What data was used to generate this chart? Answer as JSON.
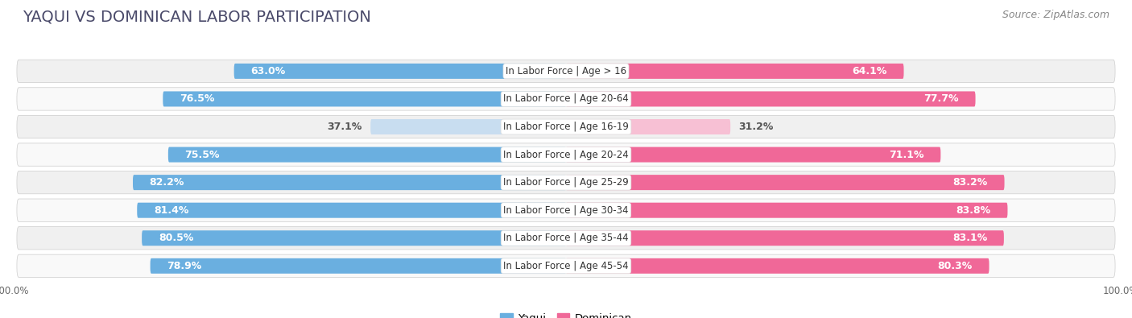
{
  "title": "YAQUI VS DOMINICAN LABOR PARTICIPATION",
  "source": "Source: ZipAtlas.com",
  "categories": [
    "In Labor Force | Age > 16",
    "In Labor Force | Age 20-64",
    "In Labor Force | Age 16-19",
    "In Labor Force | Age 20-24",
    "In Labor Force | Age 25-29",
    "In Labor Force | Age 30-34",
    "In Labor Force | Age 35-44",
    "In Labor Force | Age 45-54"
  ],
  "yaqui_values": [
    63.0,
    76.5,
    37.1,
    75.5,
    82.2,
    81.4,
    80.5,
    78.9
  ],
  "dominican_values": [
    64.1,
    77.7,
    31.2,
    71.1,
    83.2,
    83.8,
    83.1,
    80.3
  ],
  "yaqui_color": "#6aafe0",
  "dominican_color": "#f06898",
  "yaqui_light_color": "#c8ddf0",
  "dominican_light_color": "#f7c0d4",
  "background_color": "#ffffff",
  "row_bg_even": "#f0f0f0",
  "row_bg_odd": "#f9f9f9",
  "bar_height": 0.55,
  "legend_yaqui": "Yaqui",
  "legend_dominican": "Dominican",
  "title_fontsize": 14,
  "source_fontsize": 9,
  "label_fontsize": 9,
  "category_fontsize": 8.5,
  "title_color": "#4a4a6a",
  "source_color": "#888888",
  "dark_label_color": "#555555"
}
